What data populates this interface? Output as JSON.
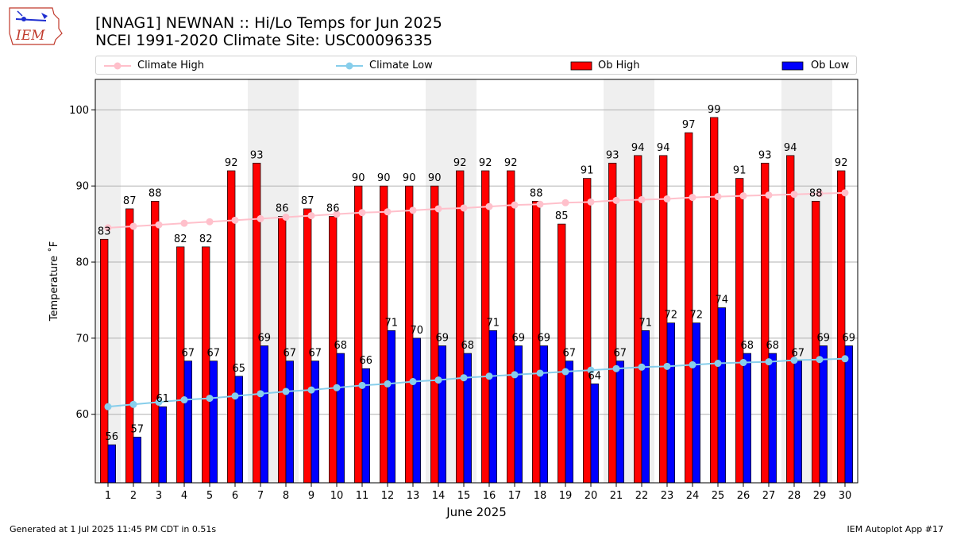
{
  "title_line1": "[NNAG1] NEWNAN :: Hi/Lo Temps for Jun 2025",
  "title_line2": "NCEI 1991-2020 Climate Site: USC00096335",
  "footer_left": "Generated at 1 Jul 2025 11:45 PM CDT in 0.51s",
  "footer_right": "IEM Autoplot App #17",
  "logo_text": "IEM",
  "colors": {
    "ob_high": "#ff0000",
    "ob_low": "#0000ff",
    "climate_high": "#ffc0cb",
    "climate_low": "#87ceeb",
    "weekend_band": "#efefef"
  },
  "chart_data": {
    "type": "bar",
    "xlabel": "June 2025",
    "ylabel": "Temperature ˚F",
    "ylim": [
      51,
      104
    ],
    "yticks": [
      60,
      70,
      80,
      90,
      100
    ],
    "grid": true,
    "legend_position": "top",
    "categories": [
      "1",
      "2",
      "3",
      "4",
      "5",
      "6",
      "7",
      "8",
      "9",
      "10",
      "11",
      "12",
      "13",
      "14",
      "15",
      "16",
      "17",
      "18",
      "19",
      "20",
      "21",
      "22",
      "23",
      "24",
      "25",
      "26",
      "27",
      "28",
      "29",
      "30"
    ],
    "weekend_days": [
      1,
      7,
      8,
      14,
      15,
      21,
      22,
      28,
      29
    ],
    "series": [
      {
        "name": "Ob High",
        "type": "bar",
        "values": [
          83,
          87,
          88,
          82,
          82,
          92,
          93,
          86,
          87,
          86,
          90,
          90,
          90,
          90,
          92,
          92,
          92,
          88,
          85,
          91,
          93,
          94,
          94,
          97,
          99,
          91,
          93,
          94,
          88,
          92
        ]
      },
      {
        "name": "Ob Low",
        "type": "bar",
        "values": [
          56,
          57,
          61,
          67,
          67,
          65,
          69,
          67,
          67,
          68,
          66,
          71,
          70,
          69,
          68,
          71,
          69,
          69,
          67,
          64,
          67,
          71,
          72,
          72,
          74,
          68,
          68,
          67,
          69,
          69
        ]
      },
      {
        "name": "Climate High",
        "type": "line",
        "values": [
          84.5,
          84.7,
          84.9,
          85.1,
          85.3,
          85.5,
          85.7,
          85.9,
          86.1,
          86.3,
          86.5,
          86.6,
          86.8,
          87.0,
          87.1,
          87.3,
          87.5,
          87.6,
          87.8,
          87.9,
          88.1,
          88.2,
          88.3,
          88.5,
          88.6,
          88.7,
          88.8,
          88.9,
          89.0,
          89.1
        ]
      },
      {
        "name": "Climate Low",
        "type": "line",
        "values": [
          61.0,
          61.3,
          61.6,
          61.9,
          62.1,
          62.4,
          62.7,
          63.0,
          63.2,
          63.5,
          63.8,
          64.0,
          64.3,
          64.5,
          64.8,
          65.0,
          65.2,
          65.4,
          65.6,
          65.8,
          66.0,
          66.2,
          66.3,
          66.5,
          66.7,
          66.8,
          66.9,
          67.1,
          67.2,
          67.3
        ]
      }
    ]
  }
}
